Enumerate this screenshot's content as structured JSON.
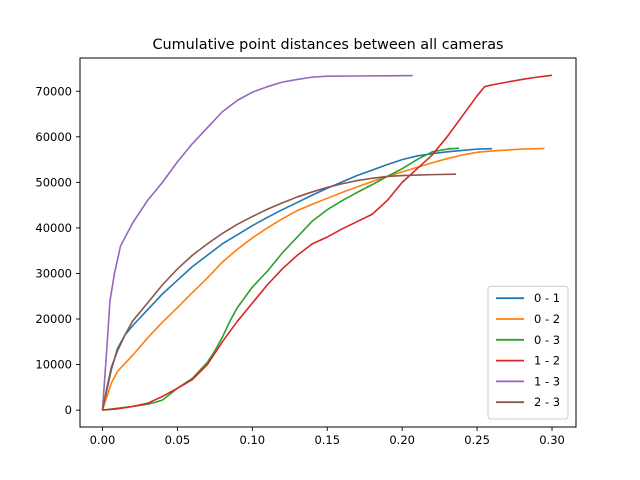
{
  "chart_data": {
    "type": "line",
    "title": "Cumulative point distances between all cameras",
    "xlabel": "",
    "ylabel": "",
    "xlim": [
      -0.015,
      0.316
    ],
    "ylim": [
      -3700,
      77300
    ],
    "xticks": [
      0.0,
      0.05,
      0.1,
      0.15,
      0.2,
      0.25,
      0.3
    ],
    "xtick_labels": [
      "0.00",
      "0.05",
      "0.10",
      "0.15",
      "0.20",
      "0.25",
      "0.30"
    ],
    "yticks": [
      0,
      10000,
      20000,
      30000,
      40000,
      50000,
      60000,
      70000
    ],
    "ytick_labels": [
      "0",
      "10000",
      "20000",
      "30000",
      "40000",
      "50000",
      "60000",
      "70000"
    ],
    "grid": false,
    "legend_position": "lower right",
    "series": [
      {
        "name": "0 - 1",
        "color": "#1f77b4",
        "points": [
          [
            0.0,
            0
          ],
          [
            0.003,
            4500
          ],
          [
            0.006,
            9000
          ],
          [
            0.01,
            13500
          ],
          [
            0.015,
            16500
          ],
          [
            0.02,
            18500
          ],
          [
            0.03,
            22000
          ],
          [
            0.04,
            25500
          ],
          [
            0.05,
            28500
          ],
          [
            0.06,
            31500
          ],
          [
            0.07,
            34000
          ],
          [
            0.08,
            36500
          ],
          [
            0.09,
            38500
          ],
          [
            0.1,
            40500
          ],
          [
            0.11,
            42300
          ],
          [
            0.12,
            44000
          ],
          [
            0.13,
            45600
          ],
          [
            0.14,
            47200
          ],
          [
            0.15,
            48700
          ],
          [
            0.16,
            50100
          ],
          [
            0.17,
            51500
          ],
          [
            0.18,
            52700
          ],
          [
            0.19,
            53900
          ],
          [
            0.2,
            55000
          ],
          [
            0.21,
            55800
          ],
          [
            0.22,
            56300
          ],
          [
            0.23,
            56700
          ],
          [
            0.24,
            57000
          ],
          [
            0.25,
            57300
          ],
          [
            0.26,
            57400
          ]
        ]
      },
      {
        "name": "0 - 2",
        "color": "#ff7f0e",
        "points": [
          [
            0.0,
            0
          ],
          [
            0.003,
            3000
          ],
          [
            0.006,
            6000
          ],
          [
            0.01,
            8500
          ],
          [
            0.02,
            12000
          ],
          [
            0.03,
            15800
          ],
          [
            0.04,
            19300
          ],
          [
            0.05,
            22500
          ],
          [
            0.06,
            25800
          ],
          [
            0.07,
            29000
          ],
          [
            0.08,
            32500
          ],
          [
            0.09,
            35300
          ],
          [
            0.1,
            37800
          ],
          [
            0.11,
            40000
          ],
          [
            0.12,
            42000
          ],
          [
            0.13,
            43800
          ],
          [
            0.14,
            45200
          ],
          [
            0.15,
            46500
          ],
          [
            0.16,
            47800
          ],
          [
            0.17,
            49000
          ],
          [
            0.18,
            50200
          ],
          [
            0.19,
            51300
          ],
          [
            0.2,
            52300
          ],
          [
            0.21,
            53300
          ],
          [
            0.22,
            54300
          ],
          [
            0.23,
            55200
          ],
          [
            0.24,
            56000
          ],
          [
            0.25,
            56600
          ],
          [
            0.26,
            56900
          ],
          [
            0.27,
            57100
          ],
          [
            0.28,
            57300
          ],
          [
            0.29,
            57400
          ],
          [
            0.295,
            57450
          ]
        ]
      },
      {
        "name": "0 - 3",
        "color": "#2ca02c",
        "points": [
          [
            0.0,
            0
          ],
          [
            0.01,
            400
          ],
          [
            0.02,
            800
          ],
          [
            0.03,
            1300
          ],
          [
            0.035,
            1700
          ],
          [
            0.04,
            2200
          ],
          [
            0.045,
            3500
          ],
          [
            0.05,
            4800
          ],
          [
            0.06,
            7000
          ],
          [
            0.07,
            10500
          ],
          [
            0.075,
            13000
          ],
          [
            0.08,
            16000
          ],
          [
            0.085,
            19500
          ],
          [
            0.09,
            22500
          ],
          [
            0.1,
            27000
          ],
          [
            0.11,
            30500
          ],
          [
            0.12,
            34500
          ],
          [
            0.13,
            38000
          ],
          [
            0.14,
            41500
          ],
          [
            0.15,
            44000
          ],
          [
            0.16,
            46000
          ],
          [
            0.17,
            47800
          ],
          [
            0.18,
            49500
          ],
          [
            0.19,
            51300
          ],
          [
            0.2,
            53000
          ],
          [
            0.21,
            55000
          ],
          [
            0.22,
            56700
          ],
          [
            0.23,
            57300
          ],
          [
            0.238,
            57500
          ]
        ]
      },
      {
        "name": "1 - 2",
        "color": "#d62728",
        "points": [
          [
            0.0,
            0
          ],
          [
            0.01,
            300
          ],
          [
            0.02,
            800
          ],
          [
            0.03,
            1500
          ],
          [
            0.04,
            3000
          ],
          [
            0.05,
            4800
          ],
          [
            0.06,
            6700
          ],
          [
            0.07,
            10000
          ],
          [
            0.08,
            15000
          ],
          [
            0.09,
            19500
          ],
          [
            0.1,
            23500
          ],
          [
            0.11,
            27500
          ],
          [
            0.12,
            31000
          ],
          [
            0.13,
            34000
          ],
          [
            0.14,
            36500
          ],
          [
            0.15,
            38000
          ],
          [
            0.16,
            39800
          ],
          [
            0.17,
            41400
          ],
          [
            0.18,
            43000
          ],
          [
            0.19,
            46000
          ],
          [
            0.2,
            50000
          ],
          [
            0.21,
            53000
          ],
          [
            0.22,
            56000
          ],
          [
            0.23,
            60000
          ],
          [
            0.24,
            64500
          ],
          [
            0.25,
            69000
          ],
          [
            0.255,
            71000
          ],
          [
            0.26,
            71400
          ],
          [
            0.27,
            72000
          ],
          [
            0.28,
            72600
          ],
          [
            0.29,
            73100
          ],
          [
            0.3,
            73500
          ]
        ]
      },
      {
        "name": "1 - 3",
        "color": "#9467bd",
        "points": [
          [
            0.0,
            0
          ],
          [
            0.003,
            14000
          ],
          [
            0.005,
            24000
          ],
          [
            0.008,
            30000
          ],
          [
            0.012,
            36000
          ],
          [
            0.02,
            41000
          ],
          [
            0.03,
            46000
          ],
          [
            0.04,
            50000
          ],
          [
            0.05,
            54500
          ],
          [
            0.06,
            58500
          ],
          [
            0.07,
            62000
          ],
          [
            0.08,
            65500
          ],
          [
            0.09,
            68000
          ],
          [
            0.1,
            69800
          ],
          [
            0.11,
            71000
          ],
          [
            0.12,
            72000
          ],
          [
            0.13,
            72600
          ],
          [
            0.14,
            73100
          ],
          [
            0.15,
            73300
          ],
          [
            0.17,
            73350
          ],
          [
            0.19,
            73400
          ],
          [
            0.207,
            73450
          ]
        ]
      },
      {
        "name": "2 - 3",
        "color": "#8c564b",
        "points": [
          [
            0.0,
            0
          ],
          [
            0.003,
            5000
          ],
          [
            0.006,
            9500
          ],
          [
            0.01,
            13000
          ],
          [
            0.015,
            16500
          ],
          [
            0.02,
            19500
          ],
          [
            0.03,
            23500
          ],
          [
            0.04,
            27500
          ],
          [
            0.05,
            31000
          ],
          [
            0.06,
            34000
          ],
          [
            0.07,
            36500
          ],
          [
            0.08,
            38800
          ],
          [
            0.09,
            40800
          ],
          [
            0.1,
            42500
          ],
          [
            0.11,
            44100
          ],
          [
            0.12,
            45500
          ],
          [
            0.13,
            46800
          ],
          [
            0.14,
            47900
          ],
          [
            0.15,
            48900
          ],
          [
            0.16,
            49700
          ],
          [
            0.17,
            50400
          ],
          [
            0.18,
            50900
          ],
          [
            0.19,
            51300
          ],
          [
            0.2,
            51500
          ],
          [
            0.21,
            51600
          ],
          [
            0.22,
            51700
          ],
          [
            0.236,
            51800
          ]
        ]
      }
    ]
  }
}
